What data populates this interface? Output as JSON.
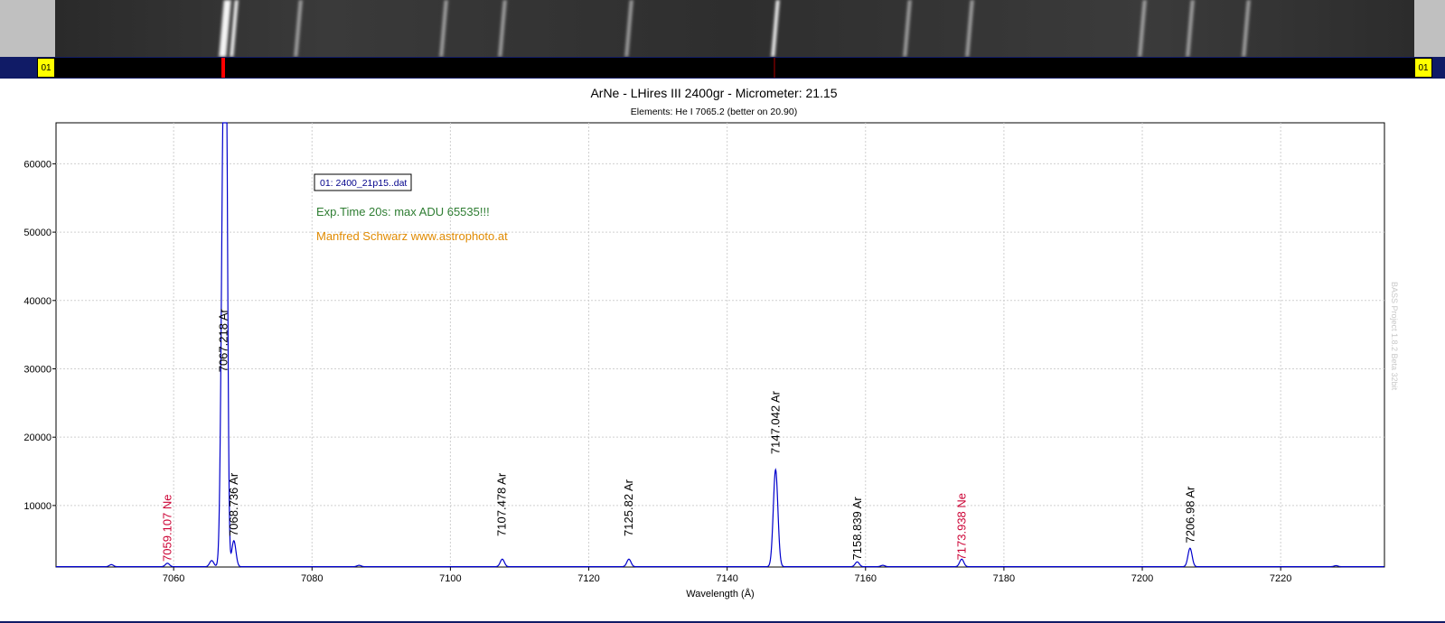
{
  "strip": {
    "left_marker": "01",
    "right_marker": "01",
    "streaks_x": [
      7067.2,
      7068.7,
      7078.0,
      7099.0,
      7107.5,
      7125.8,
      7147.0,
      7166.0,
      7175.0,
      7200.0,
      7206.9,
      7215.0
    ]
  },
  "chart_data": {
    "type": "line",
    "title": "ArNe - LHires III 2400gr - Micrometer: 21.15",
    "subtitle": "Elements: He I 7065.2 (better on 20.90)",
    "xlabel": "Wavelength (Å)",
    "ylabel": "",
    "xlim": [
      7043,
      7235
    ],
    "ylim": [
      1000,
      66000
    ],
    "xticks": [
      7060,
      7080,
      7100,
      7120,
      7140,
      7160,
      7180,
      7200,
      7220
    ],
    "yticks": [
      10000,
      20000,
      30000,
      40000,
      50000,
      60000
    ],
    "grid": true,
    "series": [
      {
        "color": "#0000cc",
        "lines": [
          {
            "x": 7051.0,
            "h": 300,
            "w": 0.3
          },
          {
            "x": 7059.1,
            "h": 500,
            "w": 0.3
          },
          {
            "x": 7065.5,
            "h": 900,
            "w": 0.3
          },
          {
            "x": 7067.2,
            "h": 65000,
            "w": 0.3
          },
          {
            "x": 7067.6,
            "h": 57000,
            "w": 0.22
          },
          {
            "x": 7068.7,
            "h": 3800,
            "w": 0.3
          },
          {
            "x": 7086.8,
            "h": 200,
            "w": 0.3
          },
          {
            "x": 7107.5,
            "h": 1100,
            "w": 0.3
          },
          {
            "x": 7125.8,
            "h": 1100,
            "w": 0.3
          },
          {
            "x": 7147.0,
            "h": 14200,
            "w": 0.33
          },
          {
            "x": 7158.8,
            "h": 700,
            "w": 0.3
          },
          {
            "x": 7162.5,
            "h": 200,
            "w": 0.3
          },
          {
            "x": 7173.9,
            "h": 1100,
            "w": 0.3
          },
          {
            "x": 7206.9,
            "h": 2700,
            "w": 0.3
          },
          {
            "x": 7228.0,
            "h": 150,
            "w": 0.3
          }
        ]
      }
    ],
    "line_labels": [
      {
        "x": 7059.107,
        "y": 1800,
        "text": "7059.107 Ne",
        "color": "#cc0033"
      },
      {
        "x": 7067.218,
        "y": 29500,
        "text": "7067.218 Ar",
        "color": "#000000"
      },
      {
        "x": 7068.736,
        "y": 5500,
        "text": "7068.736 Ar",
        "color": "#000000"
      },
      {
        "x": 7107.478,
        "y": 5500,
        "text": "7107.478 Ar",
        "color": "#000000"
      },
      {
        "x": 7125.82,
        "y": 5500,
        "text": "7125.82 Ar",
        "color": "#000000"
      },
      {
        "x": 7147.042,
        "y": 17500,
        "text": "7147.042 Ar",
        "color": "#000000"
      },
      {
        "x": 7158.839,
        "y": 2000,
        "text": "7158.839 Ar",
        "color": "#000000"
      },
      {
        "x": 7173.938,
        "y": 2000,
        "text": "7173.938 Ne",
        "color": "#cc0033"
      },
      {
        "x": 7206.98,
        "y": 4500,
        "text": "7206.98 Ar",
        "color": "#000000"
      }
    ],
    "legend": {
      "label": "01: 2400_21p15..dat",
      "notes": [
        {
          "text": "Exp.Time 20s: max ADU 65535!!!",
          "color": "#2e7d32"
        },
        {
          "text": "Manfred Schwarz www.astrophoto.at",
          "color": "#e08a00"
        }
      ]
    },
    "watermark": "BASS Project 1.8.2 Beta 32bit"
  }
}
